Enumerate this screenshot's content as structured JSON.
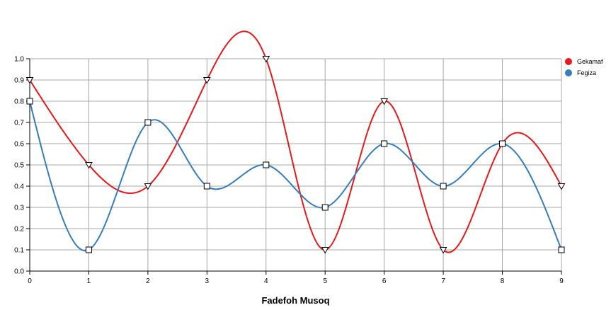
{
  "chart_data": {
    "type": "line",
    "title": "",
    "xlabel": "Fadefoh Musoq",
    "ylabel": "",
    "x": [
      0,
      1,
      2,
      3,
      4,
      5,
      6,
      7,
      8,
      9
    ],
    "xlim": [
      0,
      9
    ],
    "ylim": [
      0,
      1
    ],
    "x_ticks": [
      "0",
      "1",
      "2",
      "3",
      "4",
      "5",
      "6",
      "7",
      "8",
      "9"
    ],
    "y_ticks": [
      "0.0",
      "0.1",
      "0.2",
      "0.3",
      "0.4",
      "0.5",
      "0.6",
      "0.7",
      "0.8",
      "0.9",
      "1.0"
    ],
    "grid": true,
    "smooth": true,
    "legend_position": "top-right",
    "series": [
      {
        "name": "Gekamaf",
        "color": "#e41a1c",
        "marker": "triangle-down",
        "values": [
          0.9,
          0.5,
          0.4,
          0.9,
          1.0,
          0.1,
          0.8,
          0.1,
          0.6,
          0.4
        ]
      },
      {
        "name": "Fegiza",
        "color": "#377eb8",
        "marker": "square",
        "values": [
          0.8,
          0.1,
          0.7,
          0.4,
          0.5,
          0.3,
          0.6,
          0.4,
          0.6,
          0.1
        ]
      }
    ]
  }
}
